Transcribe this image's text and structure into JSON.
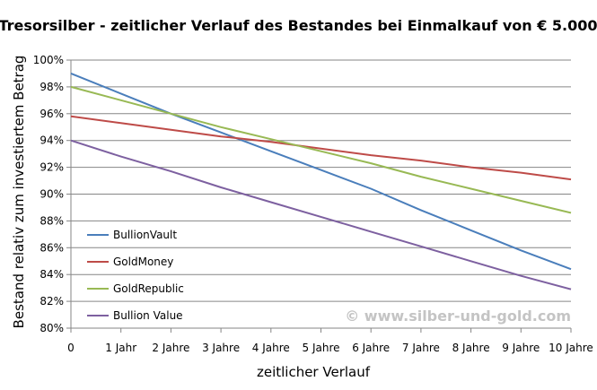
{
  "colors": {
    "bullionvault": "#4a7ebb",
    "goldmoney": "#be4b48",
    "goldrepublic": "#98b954",
    "bullionvalue": "#7d60a0",
    "grid": "#868686",
    "axis": "#868686"
  },
  "watermark": "© www.silber-und-gold.com",
  "chart_data": {
    "type": "line",
    "title": "Tresorsilber - zeitlicher Verlauf des Bestandes bei Einmalkauf von € 5.000",
    "xlabel": "zeitlicher Verlauf",
    "ylabel": "Bestand relativ zum investiertem Betrag",
    "categories": [
      "0",
      "1 Jahr",
      "2 Jahre",
      "3 Jahre",
      "4 Jahre",
      "5 Jahre",
      "6 Jahre",
      "7 Jahre",
      "8 Jahre",
      "9 Jahre",
      "10 Jahre"
    ],
    "x": [
      0,
      1,
      2,
      3,
      4,
      5,
      6,
      7,
      8,
      9,
      10
    ],
    "yticks": [
      "80%",
      "82%",
      "84%",
      "86%",
      "88%",
      "90%",
      "92%",
      "94%",
      "96%",
      "98%",
      "100%"
    ],
    "ylim": [
      80,
      100
    ],
    "grid": true,
    "legend_position": "left",
    "series": [
      {
        "name": "BullionVault",
        "color_key": "bullionvault",
        "values": [
          99.0,
          97.5,
          96.0,
          94.6,
          93.2,
          91.8,
          90.4,
          88.8,
          87.3,
          85.8,
          84.4
        ]
      },
      {
        "name": "GoldMoney",
        "color_key": "goldmoney",
        "values": [
          95.8,
          95.3,
          94.8,
          94.3,
          93.9,
          93.4,
          92.9,
          92.5,
          92.0,
          91.6,
          91.1
        ]
      },
      {
        "name": "GoldRepublic",
        "color_key": "goldrepublic",
        "values": [
          98.0,
          97.0,
          96.0,
          95.0,
          94.1,
          93.2,
          92.3,
          91.3,
          90.4,
          89.5,
          88.6
        ]
      },
      {
        "name": "Bullion Value",
        "color_key": "bullionvalue",
        "values": [
          94.0,
          92.8,
          91.7,
          90.5,
          89.4,
          88.3,
          87.2,
          86.1,
          85.0,
          83.9,
          82.9
        ]
      }
    ]
  }
}
